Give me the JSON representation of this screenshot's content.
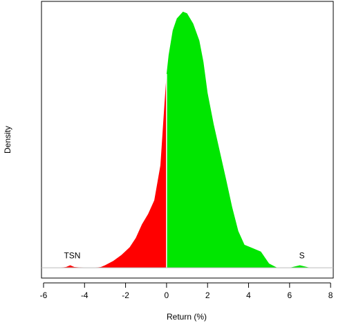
{
  "chart_data": {
    "type": "density",
    "xlabel": "Return (%)",
    "ylabel": "Density",
    "x": [
      -5.2,
      -4.9,
      -4.7,
      -4.5,
      -4.0,
      -3.5,
      -3.2,
      -3.0,
      -2.6,
      -2.2,
      -1.8,
      -1.5,
      -1.2,
      -0.9,
      -0.6,
      -0.3,
      -0.1,
      0,
      0.1,
      0.3,
      0.5,
      0.8,
      1.0,
      1.3,
      1.6,
      1.8,
      2.0,
      2.3,
      2.6,
      2.9,
      3.2,
      3.5,
      3.8,
      4.2,
      4.6,
      5.0,
      5.4,
      6.0,
      6.5,
      7.0,
      7.3
    ],
    "values": [
      0,
      0.001,
      0.003,
      0.001,
      0,
      0,
      0.001,
      0.003,
      0.008,
      0.015,
      0.024,
      0.035,
      0.051,
      0.063,
      0.079,
      0.12,
      0.193,
      0.227,
      0.249,
      0.278,
      0.292,
      0.3,
      0.298,
      0.286,
      0.266,
      0.241,
      0.205,
      0.168,
      0.136,
      0.104,
      0.071,
      0.043,
      0.027,
      0.023,
      0.019,
      0.005,
      0,
      0,
      0.003,
      0,
      0
    ],
    "negative_color": "#ff0000",
    "positive_color": "#00e600",
    "annotations": [
      {
        "text": "TSN",
        "x": -4.6
      },
      {
        "text": "S",
        "x": 6.6
      }
    ],
    "xlim": [
      -6.1,
      8.13
    ],
    "ylim": [
      -0.012,
      0.312
    ],
    "xticks": [
      -6,
      -4,
      -2,
      0,
      2,
      4,
      6,
      8
    ]
  }
}
